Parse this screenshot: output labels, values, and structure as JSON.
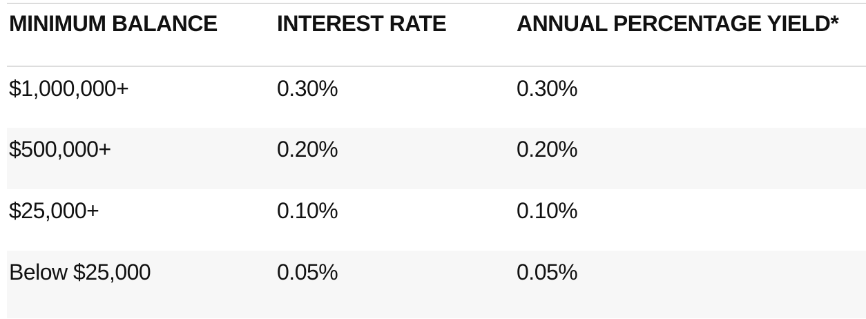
{
  "table": {
    "columns": [
      {
        "label": "MINIMUM BALANCE"
      },
      {
        "label": "INTEREST RATE"
      },
      {
        "label": "ANNUAL PERCENTAGE YIELD*"
      }
    ],
    "rows": [
      {
        "minimum_balance": "$1,000,000+",
        "interest_rate": "0.30%",
        "apy": "0.30%"
      },
      {
        "minimum_balance": "$500,000+",
        "interest_rate": "0.20%",
        "apy": "0.20%"
      },
      {
        "minimum_balance": "$25,000+",
        "interest_rate": "0.10%",
        "apy": "0.10%"
      },
      {
        "minimum_balance": "Below $25,000",
        "interest_rate": "0.05%",
        "apy": "0.05%"
      }
    ],
    "colors": {
      "text": "#111111",
      "zebra_row_bg": "#f7f7f7",
      "border": "#dcdcdc"
    }
  },
  "chart_data": {
    "type": "table",
    "columns": [
      "MINIMUM BALANCE",
      "INTEREST RATE",
      "ANNUAL PERCENTAGE YIELD*"
    ],
    "rows": [
      [
        "$1,000,000+",
        "0.30%",
        "0.30%"
      ],
      [
        "$500,000+",
        "0.20%",
        "0.20%"
      ],
      [
        "$25,000+",
        "0.10%",
        "0.10%"
      ],
      [
        "Below $25,000",
        "0.05%",
        "0.05%"
      ]
    ]
  }
}
